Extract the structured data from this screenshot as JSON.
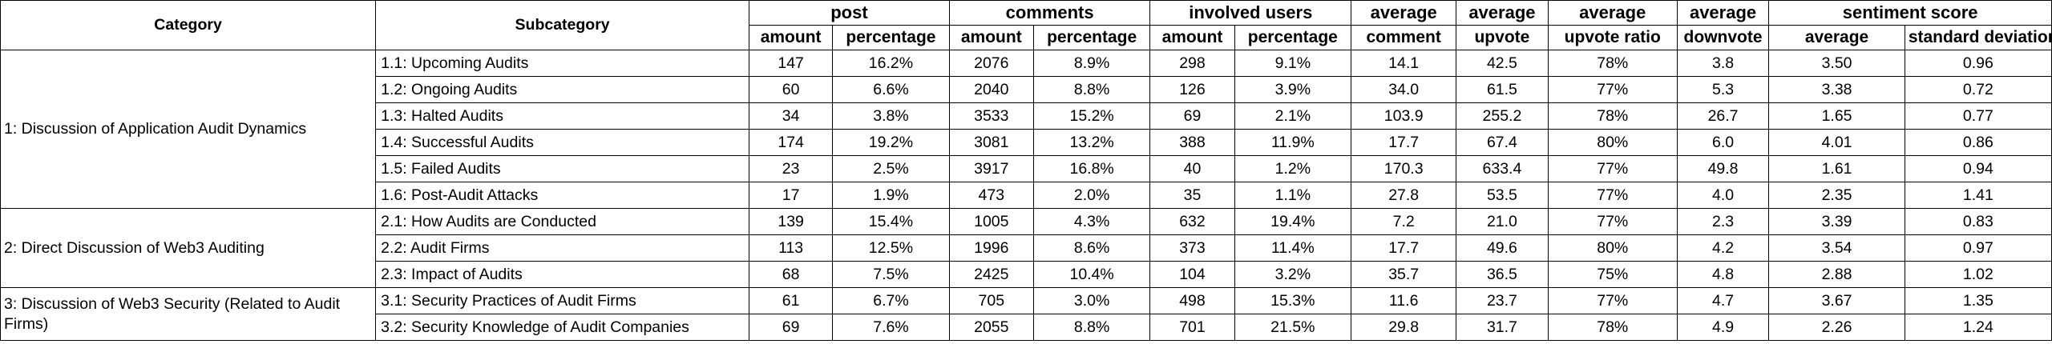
{
  "headers": {
    "category": "Category",
    "subcategory": "Subcategory",
    "post": "post",
    "comments": "comments",
    "involved_users": "involved users",
    "average": "average",
    "comment": "comment",
    "upvote": "upvote",
    "upvote_ratio": "upvote ratio",
    "downvote": "downvote",
    "sentiment_score": "sentiment score",
    "amount": "amount",
    "percentage": "percentage",
    "sentiment_average": "average",
    "standard_deviation": "standard deviation"
  },
  "categories": [
    "1: Discussion of Application Audit Dynamics",
    "2: Direct Discussion of Web3 Auditing",
    "3: Discussion of Web3 Security (Related to Audit Firms)"
  ],
  "rows": [
    [
      "1.1: Upcoming Audits",
      "147",
      "16.2%",
      "2076",
      "8.9%",
      "298",
      "9.1%",
      "14.1",
      "42.5",
      "78%",
      "3.8",
      "3.50",
      "0.96"
    ],
    [
      "1.2: Ongoing Audits",
      "60",
      "6.6%",
      "2040",
      "8.8%",
      "126",
      "3.9%",
      "34.0",
      "61.5",
      "77%",
      "5.3",
      "3.38",
      "0.72"
    ],
    [
      "1.3: Halted Audits",
      "34",
      "3.8%",
      "3533",
      "15.2%",
      "69",
      "2.1%",
      "103.9",
      "255.2",
      "78%",
      "26.7",
      "1.65",
      "0.77"
    ],
    [
      "1.4: Successful Audits",
      "174",
      "19.2%",
      "3081",
      "13.2%",
      "388",
      "11.9%",
      "17.7",
      "67.4",
      "80%",
      "6.0",
      "4.01",
      "0.86"
    ],
    [
      "1.5: Failed Audits",
      "23",
      "2.5%",
      "3917",
      "16.8%",
      "40",
      "1.2%",
      "170.3",
      "633.4",
      "77%",
      "49.8",
      "1.61",
      "0.94"
    ],
    [
      "1.6: Post-Audit Attacks",
      "17",
      "1.9%",
      "473",
      "2.0%",
      "35",
      "1.1%",
      "27.8",
      "53.5",
      "77%",
      "4.0",
      "2.35",
      "1.41"
    ],
    [
      "2.1: How Audits are Conducted",
      "139",
      "15.4%",
      "1005",
      "4.3%",
      "632",
      "19.4%",
      "7.2",
      "21.0",
      "77%",
      "2.3",
      "3.39",
      "0.83"
    ],
    [
      "2.2: Audit Firms",
      "113",
      "12.5%",
      "1996",
      "8.6%",
      "373",
      "11.4%",
      "17.7",
      "49.6",
      "80%",
      "4.2",
      "3.54",
      "0.97"
    ],
    [
      "2.3: Impact of Audits",
      "68",
      "7.5%",
      "2425",
      "10.4%",
      "104",
      "3.2%",
      "35.7",
      "36.5",
      "75%",
      "4.8",
      "2.88",
      "1.02"
    ],
    [
      "3.1: Security Practices of Audit Firms",
      "61",
      "6.7%",
      "705",
      "3.0%",
      "498",
      "15.3%",
      "11.6",
      "23.7",
      "77%",
      "4.7",
      "3.67",
      "1.35"
    ],
    [
      "3.2: Security Knowledge of Audit Companies",
      "69",
      "7.6%",
      "2055",
      "8.8%",
      "701",
      "21.5%",
      "29.8",
      "31.7",
      "78%",
      "4.9",
      "2.26",
      "1.24"
    ]
  ]
}
